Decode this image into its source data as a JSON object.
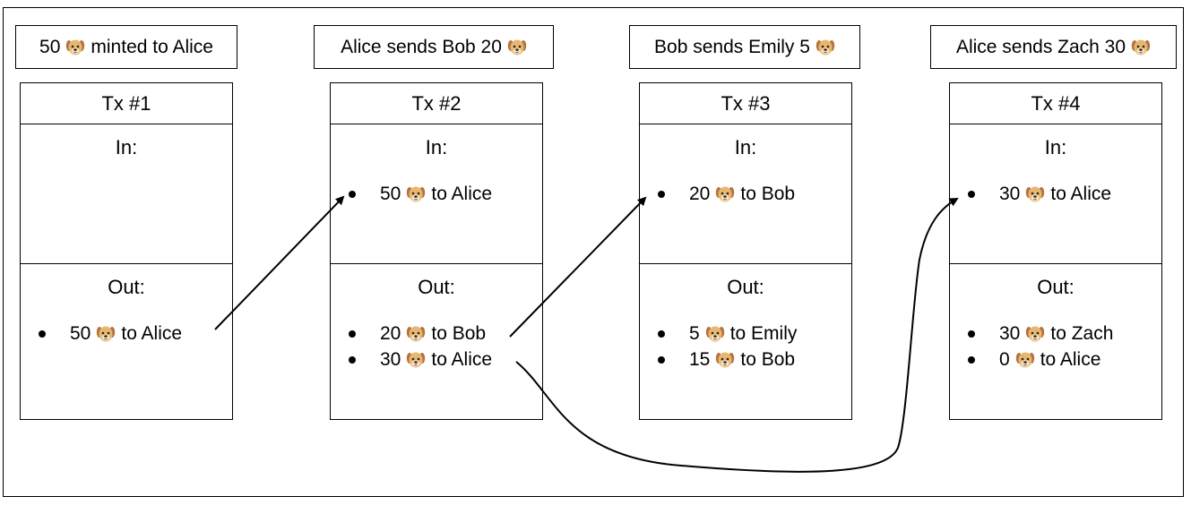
{
  "captions": [
    {
      "before": "50",
      "after": "minted to Alice"
    },
    {
      "before": "Alice sends Bob 20",
      "after": ""
    },
    {
      "before": "Bob sends Emily 5",
      "after": ""
    },
    {
      "before": "Alice sends Zach 30",
      "after": ""
    }
  ],
  "in_label": "In:",
  "out_label": "Out:",
  "transactions": [
    {
      "title": "Tx #1",
      "inputs": [],
      "outputs": [
        {
          "amount": "50",
          "to": "to Alice"
        }
      ]
    },
    {
      "title": "Tx #2",
      "inputs": [
        {
          "amount": "50",
          "to": "to Alice"
        }
      ],
      "outputs": [
        {
          "amount": "20",
          "to": "to Bob"
        },
        {
          "amount": "30",
          "to": "to Alice"
        }
      ]
    },
    {
      "title": "Tx #3",
      "inputs": [
        {
          "amount": "20",
          "to": "to Bob"
        }
      ],
      "outputs": [
        {
          "amount": "5",
          "to": "to Emily"
        },
        {
          "amount": "15",
          "to": "to Bob"
        }
      ]
    },
    {
      "title": "Tx #4",
      "inputs": [
        {
          "amount": "30",
          "to": "to Alice"
        }
      ],
      "outputs": [
        {
          "amount": "30",
          "to": "to Zach"
        },
        {
          "amount": "0",
          "to": "to Alice"
        }
      ]
    }
  ],
  "icon": "dog-face-icon",
  "colors": {
    "line": "#000000",
    "dog_fur": "#e8b66f",
    "dog_ear": "#b5733d",
    "background": "#ffffff"
  }
}
